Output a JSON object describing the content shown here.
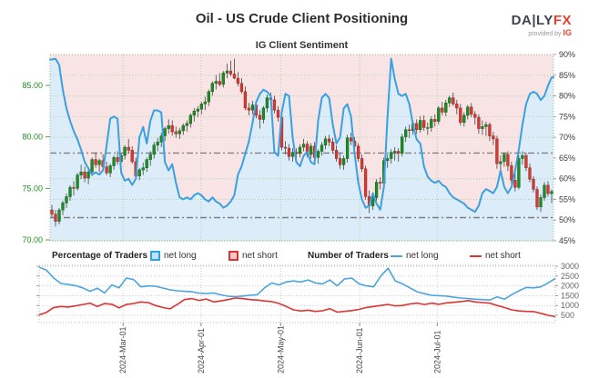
{
  "header": {
    "title": "Oil - US Crude Client Positioning",
    "subtitle": "IG Client Sentiment"
  },
  "logo": {
    "brand_daily": "DA|LY",
    "brand_fx": "FX",
    "provided_by": "provided by",
    "ig": "IG"
  },
  "legend": {
    "pct_header": "Percentage of Traders",
    "pct_long": "net long",
    "pct_short": "net short",
    "num_header": "Number of Traders",
    "num_long": "net long",
    "num_short": "net short"
  },
  "colors": {
    "area_above_line": "#f8e4e4",
    "area_below_line": "#dcecf8",
    "grid_green": "#abd3ab",
    "grid_gray": "#cccccc",
    "border_green": "#8fbf8f",
    "border_gray": "#b5b5b5",
    "threshold": "#808080",
    "candle_up": "#1f8b25",
    "candle_up_stroke": "#14621a",
    "candle_down": "#d43a35",
    "candle_down_stroke": "#9e2823",
    "wick": "#444444",
    "sentiment_line": "#3aa0e0",
    "long_line": "#4aa4dd",
    "short_line": "#dd3333",
    "price_axis_text": "#1e8c1e",
    "pct_axis_text": "#3a3a3a",
    "count_axis_text": "#666666",
    "date_text": "#444444",
    "tick": "#888888"
  },
  "chart_data": [
    {
      "type": "candlestick+area-line",
      "title": "IG Client Sentiment",
      "price_axis": {
        "ticks": [
          70,
          75,
          80,
          85
        ],
        "tick_labels": [
          "70.00",
          "75.00",
          "80.00",
          "85.00"
        ],
        "min": 69.8,
        "max": 88.1
      },
      "pct_axis": {
        "ticks": [
          45,
          50,
          55,
          60,
          65,
          70,
          75,
          80,
          85,
          90
        ],
        "tick_labels": [
          "45%",
          "50%",
          "55%",
          "60%",
          "65%",
          "70%",
          "75%",
          "80%",
          "85%",
          "90%"
        ],
        "min": 45,
        "max": 90
      },
      "threshold_lines_pct": [
        66.2,
        50.6
      ],
      "month_fractions": [
        0.145,
        0.3,
        0.458,
        0.615,
        0.769
      ],
      "candles_ohlc": [
        [
          72.9,
          73.4,
          72.2,
          72.5
        ],
        [
          72.5,
          72.9,
          71.3,
          71.8
        ],
        [
          71.8,
          73.1,
          71.5,
          72.9
        ],
        [
          72.9,
          73.8,
          72.4,
          73.6
        ],
        [
          73.6,
          74.5,
          73.1,
          74.2
        ],
        [
          74.2,
          75.3,
          73.8,
          75.1
        ],
        [
          75.1,
          75.7,
          74.3,
          75.0
        ],
        [
          75.0,
          76.5,
          74.8,
          76.3
        ],
        [
          76.3,
          77.3,
          75.9,
          76.6
        ],
        [
          76.6,
          77.1,
          75.6,
          76.0
        ],
        [
          76.0,
          76.8,
          75.4,
          76.6
        ],
        [
          76.6,
          78.0,
          76.2,
          77.8
        ],
        [
          77.8,
          78.5,
          77.0,
          77.3
        ],
        [
          77.3,
          77.9,
          76.6,
          77.7
        ],
        [
          77.7,
          78.3,
          76.9,
          77.1
        ],
        [
          77.1,
          77.6,
          76.3,
          76.5
        ],
        [
          76.5,
          77.4,
          76.1,
          77.2
        ],
        [
          77.2,
          78.2,
          76.8,
          78.0
        ],
        [
          78.0,
          78.6,
          77.3,
          77.6
        ],
        [
          77.6,
          78.4,
          77.1,
          78.2
        ],
        [
          78.2,
          79.2,
          77.8,
          79.0
        ],
        [
          79.0,
          79.8,
          78.4,
          78.7
        ],
        [
          78.7,
          79.1,
          77.4,
          77.6
        ],
        [
          77.6,
          78.0,
          75.9,
          76.2
        ],
        [
          76.2,
          77.0,
          75.8,
          76.8
        ],
        [
          76.8,
          77.5,
          76.3,
          77.0
        ],
        [
          77.0,
          78.0,
          76.6,
          77.8
        ],
        [
          77.8,
          78.6,
          77.2,
          78.3
        ],
        [
          78.3,
          79.5,
          77.9,
          79.2
        ],
        [
          79.2,
          79.9,
          78.6,
          79.5
        ],
        [
          79.5,
          80.4,
          79.0,
          80.1
        ],
        [
          80.1,
          81.0,
          79.6,
          80.8
        ],
        [
          80.8,
          81.7,
          80.3,
          81.1
        ],
        [
          81.1,
          81.6,
          80.1,
          80.5
        ],
        [
          80.5,
          81.0,
          79.9,
          80.3
        ],
        [
          80.3,
          80.9,
          79.8,
          80.6
        ],
        [
          80.6,
          81.3,
          80.2,
          81.1
        ],
        [
          81.1,
          81.6,
          80.5,
          81.3
        ],
        [
          81.3,
          82.3,
          80.9,
          82.1
        ],
        [
          82.1,
          82.8,
          81.5,
          82.5
        ],
        [
          82.5,
          83.0,
          81.9,
          82.7
        ],
        [
          82.7,
          83.4,
          82.2,
          83.2
        ],
        [
          83.2,
          83.9,
          82.6,
          83.4
        ],
        [
          83.4,
          84.6,
          83.0,
          84.4
        ],
        [
          84.4,
          85.4,
          84.0,
          85.2
        ],
        [
          85.2,
          86.0,
          84.6,
          85.4
        ],
        [
          85.4,
          86.2,
          84.9,
          85.1
        ],
        [
          85.1,
          86.4,
          84.8,
          86.2
        ],
        [
          86.2,
          87.1,
          85.7,
          86.4
        ],
        [
          86.4,
          87.4,
          85.9,
          86.1
        ],
        [
          86.1,
          87.6,
          85.6,
          85.7
        ],
        [
          85.7,
          86.3,
          84.9,
          85.2
        ],
        [
          85.2,
          85.7,
          84.2,
          84.4
        ],
        [
          84.4,
          84.9,
          82.6,
          82.8
        ],
        [
          82.8,
          83.3,
          82.1,
          82.6
        ],
        [
          82.6,
          83.5,
          82.2,
          83.1
        ],
        [
          83.1,
          83.4,
          81.8,
          82.1
        ],
        [
          82.1,
          82.6,
          80.8,
          81.7
        ],
        [
          81.7,
          83.0,
          81.3,
          82.8
        ],
        [
          82.8,
          84.1,
          82.4,
          83.8
        ],
        [
          83.8,
          84.3,
          83.2,
          83.6
        ],
        [
          83.6,
          84.0,
          82.3,
          82.6
        ],
        [
          82.6,
          83.0,
          81.5,
          81.9
        ],
        [
          81.9,
          82.1,
          78.7,
          79.0
        ],
        [
          79.0,
          79.6,
          78.3,
          78.9
        ],
        [
          78.9,
          79.3,
          77.7,
          78.1
        ],
        [
          78.1,
          78.9,
          77.6,
          78.5
        ],
        [
          78.5,
          78.9,
          77.5,
          78.4
        ],
        [
          78.4,
          79.3,
          78.0,
          79.0
        ],
        [
          79.0,
          79.8,
          78.6,
          79.3
        ],
        [
          79.3,
          79.6,
          78.0,
          78.3
        ],
        [
          78.3,
          79.4,
          77.9,
          79.1
        ],
        [
          79.1,
          79.5,
          77.7,
          78.0
        ],
        [
          78.0,
          78.8,
          77.4,
          78.6
        ],
        [
          78.6,
          79.5,
          78.2,
          79.2
        ],
        [
          79.2,
          80.1,
          78.8,
          79.8
        ],
        [
          79.8,
          80.2,
          79.1,
          79.5
        ],
        [
          79.5,
          79.9,
          78.4,
          78.7
        ],
        [
          78.7,
          79.2,
          77.6,
          77.9
        ],
        [
          77.9,
          78.4,
          76.9,
          77.3
        ],
        [
          77.3,
          78.2,
          76.8,
          77.9
        ],
        [
          77.9,
          80.2,
          77.5,
          79.9
        ],
        [
          79.9,
          80.4,
          79.2,
          79.6
        ],
        [
          79.6,
          80.0,
          78.6,
          79.1
        ],
        [
          79.1,
          79.4,
          77.6,
          77.9
        ],
        [
          77.9,
          78.3,
          76.6,
          76.9
        ],
        [
          76.9,
          77.2,
          73.9,
          74.2
        ],
        [
          74.2,
          74.8,
          72.6,
          73.3
        ],
        [
          73.3,
          74.5,
          72.9,
          74.1
        ],
        [
          74.1,
          75.9,
          73.8,
          75.6
        ],
        [
          75.6,
          76.1,
          74.9,
          75.5
        ],
        [
          75.5,
          78.0,
          75.2,
          77.7
        ],
        [
          77.7,
          78.3,
          77.0,
          77.9
        ],
        [
          77.9,
          78.8,
          77.4,
          78.5
        ],
        [
          78.5,
          79.0,
          77.7,
          78.6
        ],
        [
          78.6,
          78.9,
          77.6,
          78.4
        ],
        [
          78.4,
          80.3,
          78.1,
          80.0
        ],
        [
          80.0,
          81.0,
          79.5,
          80.7
        ],
        [
          80.7,
          81.2,
          79.9,
          80.6
        ],
        [
          80.6,
          81.6,
          80.2,
          81.3
        ],
        [
          81.3,
          81.7,
          80.3,
          80.7
        ],
        [
          80.7,
          82.0,
          80.4,
          81.6
        ],
        [
          81.6,
          82.1,
          80.6,
          80.9
        ],
        [
          80.9,
          81.4,
          80.2,
          80.9
        ],
        [
          80.9,
          82.0,
          80.5,
          81.7
        ],
        [
          81.7,
          82.2,
          81.0,
          81.5
        ],
        [
          81.5,
          83.0,
          81.2,
          82.8
        ],
        [
          82.8,
          83.4,
          82.1,
          82.4
        ],
        [
          82.4,
          83.6,
          82.0,
          83.3
        ],
        [
          83.3,
          84.0,
          82.9,
          83.8
        ],
        [
          83.8,
          84.3,
          83.0,
          83.2
        ],
        [
          83.2,
          83.6,
          82.2,
          82.8
        ],
        [
          82.8,
          83.2,
          81.1,
          81.4
        ],
        [
          81.4,
          82.4,
          81.0,
          82.1
        ],
        [
          82.1,
          83.1,
          81.7,
          82.9
        ],
        [
          82.9,
          83.3,
          81.9,
          82.2
        ],
        [
          82.2,
          82.5,
          81.2,
          81.9
        ],
        [
          81.9,
          82.2,
          80.3,
          80.8
        ],
        [
          80.8,
          81.6,
          80.2,
          81.0
        ],
        [
          81.0,
          81.5,
          80.1,
          81.2
        ],
        [
          81.2,
          81.4,
          79.6,
          80.1
        ],
        [
          80.1,
          80.5,
          79.2,
          79.8
        ],
        [
          79.8,
          80.1,
          76.9,
          77.4
        ],
        [
          77.4,
          78.2,
          76.8,
          77.6
        ],
        [
          77.6,
          78.5,
          77.1,
          78.3
        ],
        [
          78.3,
          78.6,
          76.7,
          77.2
        ],
        [
          77.2,
          77.6,
          75.3,
          75.8
        ],
        [
          75.8,
          76.5,
          74.7,
          75.1
        ],
        [
          75.1,
          78.2,
          74.9,
          77.9
        ],
        [
          77.9,
          78.6,
          77.3,
          78.2
        ],
        [
          78.2,
          78.5,
          76.7,
          77.0
        ],
        [
          77.0,
          77.4,
          75.6,
          75.9
        ],
        [
          75.9,
          76.2,
          74.6,
          74.9
        ],
        [
          74.9,
          75.2,
          72.9,
          73.2
        ],
        [
          73.2,
          74.4,
          72.7,
          74.1
        ],
        [
          74.1,
          75.6,
          73.8,
          75.3
        ],
        [
          75.3,
          75.7,
          74.2,
          74.5
        ],
        [
          74.5,
          74.9,
          73.6,
          74.7
        ]
      ],
      "sentiment_pct": [
        88.8,
        89.0,
        87.5,
        81.5,
        77.0,
        74.0,
        71.5,
        69.5,
        67.0,
        64.0,
        62.5,
        61.0,
        61.5,
        61.0,
        62.0,
        68.0,
        74.5,
        75.0,
        74.5,
        61.5,
        59.5,
        60.0,
        58.5,
        60.0,
        70.0,
        72.5,
        68.5,
        74.0,
        76.5,
        76.5,
        76.0,
        64.0,
        62.0,
        63.5,
        59.0,
        55.5,
        55.0,
        55.5,
        55.0,
        56.0,
        56.5,
        56.0,
        55.0,
        54.5,
        55.5,
        54.5,
        54.0,
        53.0,
        53.5,
        54.5,
        56.0,
        61.0,
        63.0,
        66.0,
        69.0,
        73.5,
        78.5,
        80.5,
        81.5,
        81.0,
        80.0,
        66.5,
        65.5,
        76.0,
        80.5,
        80.0,
        70.0,
        64.0,
        63.0,
        65.5,
        66.5,
        64.0,
        63.5,
        74.0,
        79.5,
        80.5,
        79.5,
        73.0,
        68.5,
        70.0,
        77.0,
        78.0,
        75.0,
        66.0,
        59.0,
        55.0,
        53.0,
        53.5,
        56.5,
        54.0,
        52.5,
        58.0,
        75.0,
        89.0,
        84.0,
        80.5,
        80.0,
        80.5,
        78.0,
        73.0,
        69.5,
        68.5,
        63.0,
        60.5,
        59.5,
        59.0,
        59.5,
        58.5,
        58.0,
        56.5,
        55.5,
        55.0,
        54.5,
        54.0,
        53.0,
        52.5,
        52.0,
        53.5,
        56.5,
        57.5,
        57.0,
        56.5,
        58.0,
        62.0,
        58.0,
        56.5,
        58.0,
        62.0,
        67.0,
        73.0,
        78.0,
        80.5,
        81.0,
        80.5,
        79.0,
        80.0,
        82.5,
        84.5
      ]
    },
    {
      "type": "line",
      "count_axis": {
        "ticks": [
          500,
          1000,
          1500,
          2000,
          2500,
          3000
        ],
        "tick_labels": [
          "500",
          "1000",
          "1500",
          "2000",
          "2500",
          "3000"
        ],
        "min": 130,
        "max": 3045
      },
      "month_labels": [
        "2024-Mar-01",
        "2024-Apr-01",
        "2024-May-01",
        "2024-Jun-01",
        "2024-Jul-01"
      ],
      "series": [
        {
          "name": "net long",
          "values": [
            2950,
            2800,
            2400,
            2120,
            2070,
            2010,
            1900,
            1720,
            1880,
            1640,
            2050,
            1900,
            2400,
            2320,
            1950,
            2000,
            1980,
            1890,
            1800,
            1750,
            1720,
            1700,
            1630,
            1610,
            1640,
            1540,
            1470,
            1450,
            1480,
            1520,
            1550,
            1900,
            2150,
            2050,
            2200,
            2250,
            2200,
            2300,
            2150,
            2100,
            2300,
            2000,
            2350,
            2400,
            2100,
            2000,
            1950,
            2500,
            2900,
            2250,
            2100,
            1900,
            1700,
            1600,
            1520,
            1500,
            1480,
            1420,
            1380,
            1350,
            1320,
            1300,
            1280,
            1440,
            1320,
            1550,
            1750,
            1920,
            1900,
            1950,
            2150,
            2380
          ]
        },
        {
          "name": "net short",
          "values": [
            520,
            650,
            900,
            950,
            920,
            980,
            1050,
            1120,
            950,
            1100,
            1060,
            880,
            1050,
            1100,
            1180,
            1150,
            1000,
            900,
            830,
            1050,
            1300,
            1350,
            1260,
            1330,
            1180,
            1230,
            1300,
            1380,
            1350,
            1300,
            1280,
            1230,
            1200,
            1100,
            950,
            780,
            720,
            760,
            700,
            730,
            840,
            660,
            700,
            740,
            800,
            900,
            950,
            1000,
            1050,
            980,
            1000,
            1080,
            1120,
            1050,
            1120,
            1060,
            1130,
            1160,
            1200,
            1250,
            1180,
            1150,
            1120,
            1000,
            900,
            780,
            720,
            700,
            690,
            600,
            500,
            430
          ]
        }
      ]
    }
  ]
}
